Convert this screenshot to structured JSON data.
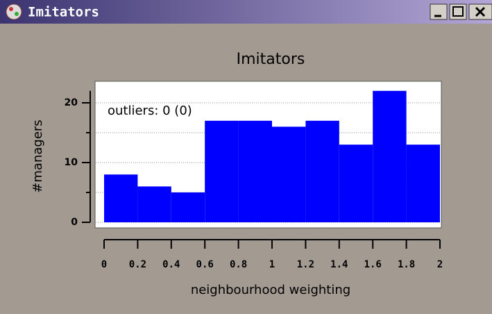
{
  "window": {
    "title": "Imitators"
  },
  "chart_data": {
    "type": "histogram",
    "title": "Imitators",
    "annotation": "outliers: 0 (0)",
    "xlabel": "neighbourhood weighting",
    "ylabel": "#managers",
    "bins": [
      0,
      0.2,
      0.4,
      0.6,
      0.8,
      1,
      1.2,
      1.4,
      1.6,
      1.8,
      2
    ],
    "values": [
      8,
      6,
      5,
      17,
      17,
      16,
      17,
      13,
      22,
      13
    ],
    "color": "#0000ff",
    "xlim": [
      0,
      2
    ],
    "xticks": [
      0,
      0.2,
      0.4,
      0.6,
      0.8,
      1,
      1.2,
      1.4,
      1.6,
      1.8,
      2
    ],
    "ylim": [
      0,
      22
    ],
    "yticks": [
      0,
      10,
      20
    ],
    "yminorticks": [
      5,
      15
    ],
    "grid": true
  }
}
